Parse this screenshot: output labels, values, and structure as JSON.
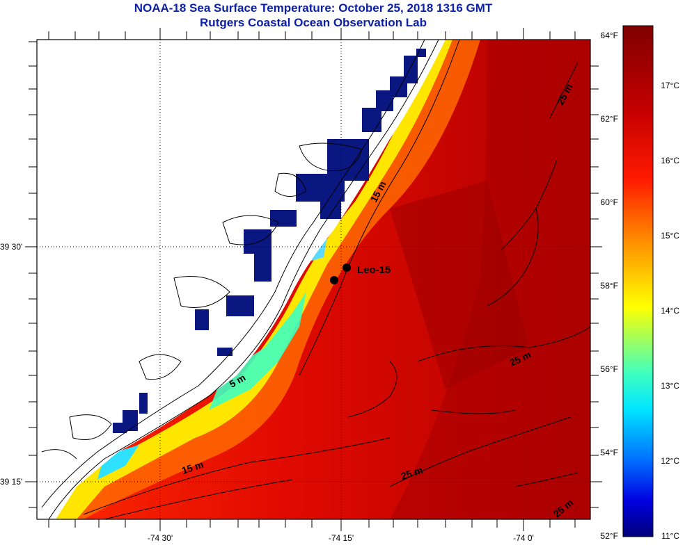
{
  "header": {
    "title": "NOAA-18 Sea Surface Temperature:  October 25, 2018 1316 GMT",
    "subtitle": "Rutgers Coastal Ocean Observation Lab"
  },
  "map": {
    "lon_labels": [
      "-74 30'",
      "-74 15'",
      "-74 0'"
    ],
    "lat_labels": [
      "39 30'",
      "39 15'"
    ],
    "station_label": "Leo-15",
    "depth_labels": [
      "15 m",
      "5 m",
      "15 m",
      "25 m",
      "25 m",
      "25 m",
      "25 m"
    ],
    "land_color": "#ffffff",
    "missing_data_color": "#0a1780"
  },
  "colorbar": {
    "fahrenheit_labels": [
      "64°F",
      "62°F",
      "60°F",
      "58°F",
      "56°F",
      "54°F",
      "52°F"
    ],
    "celsius_labels": [
      "17°C",
      "16°C",
      "15°C",
      "14°C",
      "13°C",
      "12°C",
      "11°C"
    ],
    "gradient": [
      "#800000",
      "#c00000",
      "#ff0000",
      "#ff8000",
      "#ffff00",
      "#00ffff",
      "#0080ff",
      "#0000ff",
      "#000080"
    ]
  }
}
